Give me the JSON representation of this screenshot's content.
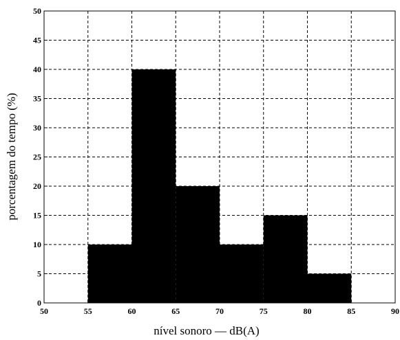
{
  "chart_data": {
    "type": "bar",
    "subtype": "histogram",
    "title": "",
    "xlabel": "nível sonoro — dB(A)",
    "ylabel": "porcentagem do tempo (%)",
    "xlim": [
      50,
      90
    ],
    "ylim": [
      0,
      50
    ],
    "xticks": [
      50,
      55,
      60,
      65,
      70,
      75,
      80,
      85,
      90
    ],
    "yticks": [
      0,
      5,
      10,
      15,
      20,
      25,
      30,
      35,
      40,
      45,
      50
    ],
    "grid": true,
    "bin_edges": [
      55,
      60,
      65,
      70,
      75,
      80,
      85
    ],
    "values": [
      10,
      40,
      20,
      10,
      15,
      5
    ],
    "bar_color": "#000000"
  }
}
